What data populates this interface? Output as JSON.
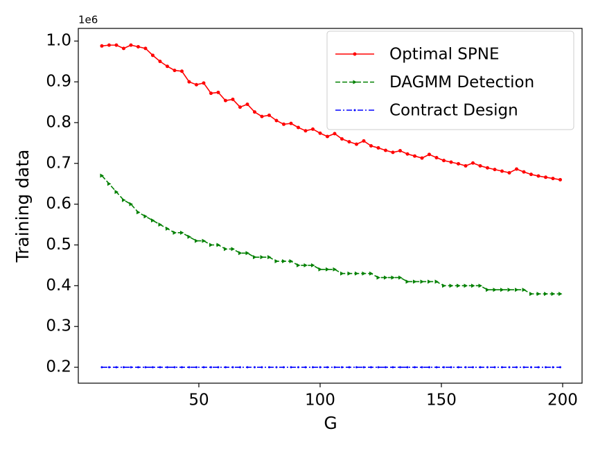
{
  "chart_data": {
    "type": "line",
    "xlabel": "G",
    "ylabel": "Training data",
    "offset_text": "1e6",
    "x": [
      10,
      13,
      16,
      19,
      22,
      25,
      28,
      31,
      34,
      37,
      40,
      43,
      46,
      49,
      52,
      55,
      58,
      61,
      64,
      67,
      70,
      73,
      76,
      79,
      82,
      85,
      88,
      91,
      94,
      97,
      100,
      103,
      106,
      109,
      112,
      115,
      118,
      121,
      124,
      127,
      130,
      133,
      136,
      139,
      142,
      145,
      148,
      151,
      154,
      157,
      160,
      163,
      166,
      169,
      172,
      175,
      178,
      181,
      184,
      187,
      190,
      193,
      196,
      199
    ],
    "series": [
      {
        "name": "Optimal SPNE",
        "color": "#ff0000",
        "linestyle": "solid",
        "marker": "circle",
        "values": [
          0.988,
          0.99,
          0.99,
          0.982,
          0.99,
          0.986,
          0.982,
          0.965,
          0.95,
          0.938,
          0.928,
          0.926,
          0.9,
          0.893,
          0.897,
          0.872,
          0.874,
          0.854,
          0.857,
          0.838,
          0.845,
          0.826,
          0.815,
          0.818,
          0.805,
          0.796,
          0.798,
          0.788,
          0.78,
          0.784,
          0.774,
          0.766,
          0.773,
          0.76,
          0.753,
          0.747,
          0.755,
          0.743,
          0.738,
          0.732,
          0.727,
          0.731,
          0.723,
          0.718,
          0.713,
          0.722,
          0.714,
          0.707,
          0.703,
          0.699,
          0.694,
          0.701,
          0.694,
          0.689,
          0.685,
          0.681,
          0.677,
          0.686,
          0.679,
          0.673,
          0.669,
          0.666,
          0.663,
          0.66
        ]
      },
      {
        "name": "DAGMM Detection",
        "color": "#008000",
        "linestyle": "dashed",
        "marker": "triangle-right",
        "values": [
          0.67,
          0.65,
          0.63,
          0.61,
          0.6,
          0.58,
          0.57,
          0.56,
          0.55,
          0.54,
          0.53,
          0.53,
          0.52,
          0.51,
          0.51,
          0.5,
          0.5,
          0.49,
          0.49,
          0.48,
          0.48,
          0.47,
          0.47,
          0.47,
          0.46,
          0.46,
          0.46,
          0.45,
          0.45,
          0.45,
          0.44,
          0.44,
          0.44,
          0.43,
          0.43,
          0.43,
          0.43,
          0.43,
          0.42,
          0.42,
          0.42,
          0.42,
          0.41,
          0.41,
          0.41,
          0.41,
          0.41,
          0.4,
          0.4,
          0.4,
          0.4,
          0.4,
          0.4,
          0.39,
          0.39,
          0.39,
          0.39,
          0.39,
          0.39,
          0.38,
          0.38,
          0.38,
          0.38,
          0.38
        ]
      },
      {
        "name": "Contract Design",
        "color": "#0000ff",
        "linestyle": "dashdot",
        "marker": "point",
        "values": [
          0.2,
          0.2,
          0.2,
          0.2,
          0.2,
          0.2,
          0.2,
          0.2,
          0.2,
          0.2,
          0.2,
          0.2,
          0.2,
          0.2,
          0.2,
          0.2,
          0.2,
          0.2,
          0.2,
          0.2,
          0.2,
          0.2,
          0.2,
          0.2,
          0.2,
          0.2,
          0.2,
          0.2,
          0.2,
          0.2,
          0.2,
          0.2,
          0.2,
          0.2,
          0.2,
          0.2,
          0.2,
          0.2,
          0.2,
          0.2,
          0.2,
          0.2,
          0.2,
          0.2,
          0.2,
          0.2,
          0.2,
          0.2,
          0.2,
          0.2,
          0.2,
          0.2,
          0.2,
          0.2,
          0.2,
          0.2,
          0.2,
          0.2,
          0.2,
          0.2,
          0.2,
          0.2,
          0.2,
          0.2
        ]
      }
    ],
    "xlim": [
      0.3,
      208
    ],
    "ylim": [
      0.161,
      1.031
    ],
    "xticks": [
      50,
      100,
      150,
      200
    ],
    "yticks": [
      0.2,
      0.3,
      0.4,
      0.5,
      0.6,
      0.7,
      0.8,
      0.9,
      {
        "value": 1,
        "label": "1.0"
      }
    ],
    "grid": false,
    "legend": "upper right"
  }
}
